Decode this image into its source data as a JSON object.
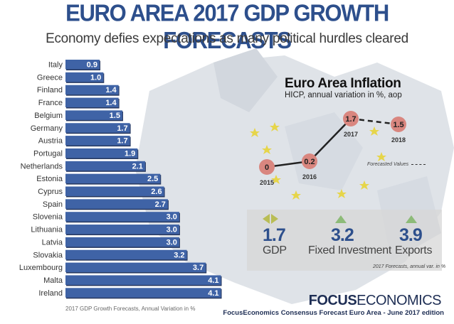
{
  "header": {
    "title": "EURO AREA  2017 GDP GROWTH FORECASTS",
    "subtitle": "Economy defies expectations as many political hurdles cleared"
  },
  "colors": {
    "bar_fill": "#3f63a6",
    "title": "#2d4f8c",
    "inflation_point": "#d9867f",
    "arrow_up": "#8dbb78",
    "arrow_neutral": "#b9bd55"
  },
  "chart_data": [
    {
      "type": "bar",
      "orientation": "horizontal",
      "categories": [
        "Italy",
        "Greece",
        "Finland",
        "France",
        "Belgium",
        "Germany",
        "Austria",
        "Portugal",
        "Netherlands",
        "Estonia",
        "Cyprus",
        "Spain",
        "Slovenia",
        "Lithuania",
        "Latvia",
        "Slovakia",
        "Luxembourg",
        "Malta",
        "Ireland"
      ],
      "values": [
        0.9,
        1.0,
        1.4,
        1.4,
        1.5,
        1.7,
        1.7,
        1.9,
        2.1,
        2.5,
        2.6,
        2.7,
        3.0,
        3.0,
        3.0,
        3.2,
        3.7,
        4.1,
        4.1
      ],
      "value_labels": [
        "0.9",
        "1.0",
        "1.4",
        "1.4",
        "1.5",
        "1.7",
        "1.7",
        "1.9",
        "2.1",
        "2.5",
        "2.6",
        "2.7",
        "3.0",
        "3.0",
        "3.0",
        "3.2",
        "3.7",
        "4.1",
        "4.1"
      ],
      "footnote": "2017 GDP Growth Forecasts, Annual Variation in %"
    },
    {
      "type": "line",
      "title": "Euro Area Inflation",
      "subtitle": "HICP, annual variation in %, aop",
      "x": [
        "2015",
        "2016",
        "2017",
        "2018"
      ],
      "values": [
        0,
        0.2,
        1.7,
        1.5
      ],
      "value_labels": [
        "0",
        "0.2",
        "1.7",
        "1.5"
      ],
      "forecast_from": "2017",
      "legend": "Forecasted Values"
    }
  ],
  "summary": {
    "items": [
      {
        "value": "1.7",
        "label": "GDP",
        "trend": "neutral"
      },
      {
        "value": "3.2",
        "label": "Fixed Investment",
        "trend": "up"
      },
      {
        "value": "3.9",
        "label": "Exports",
        "trend": "up"
      }
    ],
    "note": "2017 Forecasts, annual var. in %"
  },
  "footer": {
    "brand_bold": "FOCUS",
    "brand_regular": "ECONOMICS",
    "source": "FocusEconomics Consensus Forecast Euro Area - June 2017 edition"
  }
}
